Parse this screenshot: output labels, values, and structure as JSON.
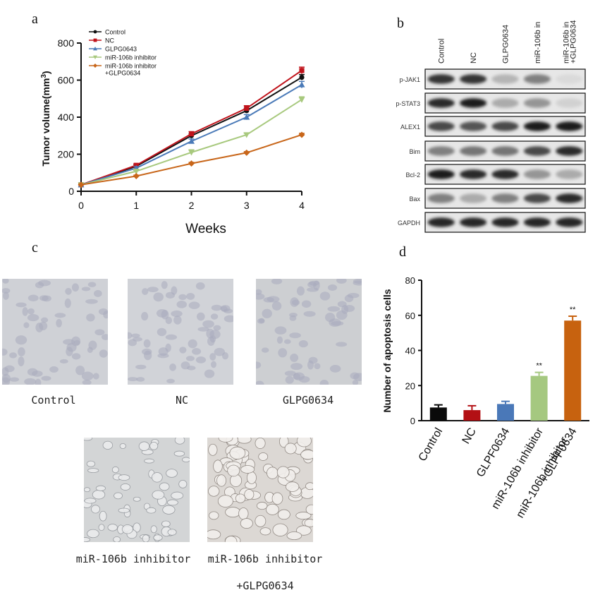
{
  "panels": {
    "a": "a",
    "b": "b",
    "c": "c",
    "d": "d"
  },
  "panel_a": {
    "chart_data": {
      "type": "line",
      "xlabel": "Weeks",
      "ylabel_main": "Tumor volume(mm",
      "ylabel_sup": "3",
      "ylabel_close": ")",
      "x": [
        0,
        1,
        2,
        3,
        4
      ],
      "xlim": [
        0,
        4
      ],
      "ylim": [
        0,
        800
      ],
      "yticks": [
        0,
        200,
        400,
        600,
        800
      ],
      "legend_position": "top-left",
      "series": [
        {
          "name": "Control",
          "color": "#111111",
          "marker": "circle",
          "values": [
            35,
            135,
            300,
            435,
            615
          ],
          "errors": [
            5,
            8,
            10,
            12,
            15
          ]
        },
        {
          "name": "NC",
          "color": "#c0141c",
          "marker": "square",
          "values": [
            35,
            140,
            310,
            448,
            652
          ],
          "errors": [
            5,
            8,
            12,
            14,
            18
          ]
        },
        {
          "name": "GLPG0643",
          "color": "#4a7ab8",
          "marker": "triangle-up",
          "values": [
            35,
            125,
            270,
            400,
            575
          ],
          "errors": [
            5,
            8,
            12,
            14,
            18
          ]
        },
        {
          "name": "miR-106b inhibitor",
          "color": "#a8c97e",
          "marker": "triangle-down",
          "values": [
            35,
            108,
            210,
            305,
            495
          ],
          "errors": [
            5,
            6,
            14,
            8,
            15
          ]
        },
        {
          "name": "miR-106b inhibitor\n+GLPG0634",
          "color": "#c8661a",
          "marker": "diamond",
          "values": [
            35,
            82,
            150,
            208,
            305
          ],
          "errors": [
            4,
            5,
            6,
            6,
            8
          ]
        }
      ]
    }
  },
  "panel_b": {
    "columns": [
      "Control",
      "NC",
      "GLPG0634",
      "miR-106b in",
      "miR-106b in\n+GLPG0634"
    ],
    "rows": [
      {
        "label": "p-JAK1",
        "intensities": [
          0.85,
          0.85,
          0.25,
          0.5,
          0.08
        ]
      },
      {
        "label": "p-STAT3",
        "intensities": [
          0.9,
          0.95,
          0.3,
          0.4,
          0.12
        ]
      },
      {
        "label": "ALEX1",
        "intensities": [
          0.75,
          0.7,
          0.75,
          0.95,
          0.95
        ]
      },
      {
        "label": "Bim",
        "intensities": [
          0.5,
          0.55,
          0.55,
          0.75,
          0.9
        ]
      },
      {
        "label": "Bcl-2",
        "intensities": [
          0.95,
          0.9,
          0.9,
          0.4,
          0.3
        ]
      },
      {
        "label": "Bax",
        "intensities": [
          0.5,
          0.3,
          0.5,
          0.75,
          0.9
        ]
      },
      {
        "label": "GAPDH",
        "intensities": [
          0.92,
          0.92,
          0.92,
          0.92,
          0.92
        ]
      }
    ]
  },
  "panel_c": {
    "images": [
      {
        "caption": "Control",
        "tone": "#cfd1d6"
      },
      {
        "caption": "NC",
        "tone": "#d1d3d8"
      },
      {
        "caption": "GLPG0634",
        "tone": "#cdcfd2"
      },
      {
        "caption": "miR-106b inhibitor",
        "tone": "#d3d5d6"
      },
      {
        "caption": "miR-106b inhibitor\n+GLPG0634",
        "tone": "#dcd8d4"
      }
    ]
  },
  "panel_d": {
    "chart_data": {
      "type": "bar",
      "ylabel": "Number of apoptosis cells",
      "ylim": [
        0,
        80
      ],
      "yticks": [
        0,
        20,
        40,
        60,
        80
      ],
      "categories": [
        "Control",
        "NC",
        "GLPF0634",
        "miR-106b inhibitor",
        "miR-106b inhibitor\n+GLPF0634"
      ],
      "values": [
        7.5,
        6.0,
        9.5,
        25.5,
        57.0
      ],
      "errors": [
        1.5,
        2.5,
        1.5,
        2.0,
        2.5
      ],
      "colors": [
        "#0a0a0a",
        "#b31014",
        "#4a78b8",
        "#a5c880",
        "#c7620f"
      ],
      "annotations": [
        "",
        "",
        "",
        "**",
        "**"
      ]
    }
  }
}
